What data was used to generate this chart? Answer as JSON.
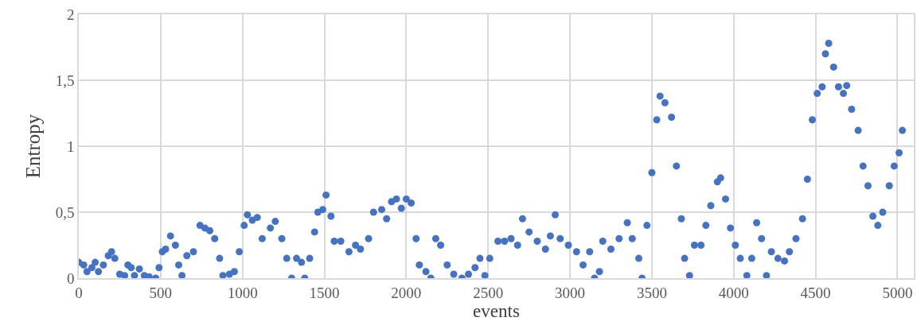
{
  "chart_data": {
    "type": "scatter",
    "xlabel": "events",
    "ylabel": "Entropy",
    "marker": "circle",
    "grid": true,
    "xlim": [
      0,
      5100
    ],
    "ylim": [
      0,
      2
    ],
    "xticks": [
      0,
      500,
      1000,
      1500,
      2000,
      2500,
      3000,
      3500,
      4000,
      4500,
      5000
    ],
    "yticks": [
      0,
      {
        "value": 0.5,
        "label": "0,5"
      },
      1,
      {
        "value": 1.5,
        "label": "1,5"
      },
      2
    ],
    "series": [
      {
        "color": "#4472c4",
        "x": [
          0,
          30,
          50,
          80,
          100,
          120,
          150,
          180,
          200,
          220,
          250,
          280,
          300,
          320,
          340,
          370,
          400,
          430,
          470,
          490,
          510,
          530,
          560,
          590,
          610,
          630,
          660,
          700,
          740,
          770,
          800,
          830,
          860,
          880,
          920,
          950,
          980,
          1010,
          1030,
          1060,
          1090,
          1120,
          1170,
          1200,
          1240,
          1270,
          1300,
          1330,
          1360,
          1380,
          1410,
          1440,
          1460,
          1490,
          1510,
          1540,
          1560,
          1600,
          1650,
          1690,
          1720,
          1770,
          1800,
          1850,
          1880,
          1910,
          1940,
          1970,
          2000,
          2030,
          2060,
          2080,
          2120,
          2150,
          2180,
          2210,
          2250,
          2290,
          2340,
          2380,
          2420,
          2450,
          2480,
          2510,
          2560,
          2600,
          2640,
          2680,
          2710,
          2750,
          2800,
          2850,
          2880,
          2910,
          2940,
          2990,
          3040,
          3080,
          3120,
          3150,
          3180,
          3200,
          3250,
          3300,
          3350,
          3380,
          3420,
          3440,
          3470,
          3500,
          3530,
          3550,
          3580,
          3620,
          3650,
          3680,
          3700,
          3730,
          3760,
          3800,
          3830,
          3860,
          3900,
          3920,
          3950,
          3980,
          4010,
          4040,
          4080,
          4110,
          4140,
          4170,
          4200,
          4230,
          4270,
          4310,
          4340,
          4380,
          4420,
          4450,
          4480,
          4510,
          4540,
          4560,
          4580,
          4610,
          4640,
          4670,
          4690,
          4720,
          4760,
          4790,
          4820,
          4850,
          4880,
          4910,
          4950,
          4980,
          5010,
          5030
        ],
        "values": [
          0.12,
          0.1,
          0.05,
          0.08,
          0.12,
          0.05,
          0.1,
          0.17,
          0.2,
          0.15,
          0.03,
          0.02,
          0.1,
          0.08,
          0.02,
          0.07,
          0.02,
          0.01,
          0.0,
          0.08,
          0.2,
          0.22,
          0.32,
          0.25,
          0.1,
          0.02,
          0.17,
          0.2,
          0.4,
          0.38,
          0.36,
          0.3,
          0.15,
          0.02,
          0.03,
          0.05,
          0.2,
          0.4,
          0.48,
          0.44,
          0.46,
          0.3,
          0.38,
          0.43,
          0.3,
          0.15,
          0.0,
          0.15,
          0.12,
          0.0,
          0.15,
          0.35,
          0.5,
          0.52,
          0.63,
          0.47,
          0.28,
          0.28,
          0.2,
          0.25,
          0.22,
          0.3,
          0.5,
          0.52,
          0.45,
          0.58,
          0.6,
          0.53,
          0.6,
          0.57,
          0.3,
          0.1,
          0.05,
          0.0,
          0.3,
          0.25,
          0.1,
          0.03,
          0.0,
          0.03,
          0.08,
          0.15,
          0.02,
          0.15,
          0.28,
          0.28,
          0.3,
          0.25,
          0.45,
          0.35,
          0.28,
          0.22,
          0.32,
          0.48,
          0.3,
          0.25,
          0.2,
          0.1,
          0.2,
          0.0,
          0.05,
          0.28,
          0.22,
          0.3,
          0.42,
          0.3,
          0.15,
          0.0,
          0.4,
          0.8,
          1.2,
          1.38,
          1.33,
          1.22,
          0.85,
          0.45,
          0.15,
          0.02,
          0.25,
          0.25,
          0.4,
          0.55,
          0.73,
          0.76,
          0.6,
          0.38,
          0.25,
          0.15,
          0.02,
          0.15,
          0.42,
          0.3,
          0.02,
          0.2,
          0.15,
          0.13,
          0.2,
          0.3,
          0.45,
          0.75,
          1.2,
          1.4,
          1.45,
          1.7,
          1.78,
          1.6,
          1.45,
          1.4,
          1.46,
          1.28,
          1.12,
          0.85,
          0.7,
          0.47,
          0.4,
          0.5,
          0.7,
          0.85,
          0.95,
          1.12
        ]
      }
    ]
  }
}
